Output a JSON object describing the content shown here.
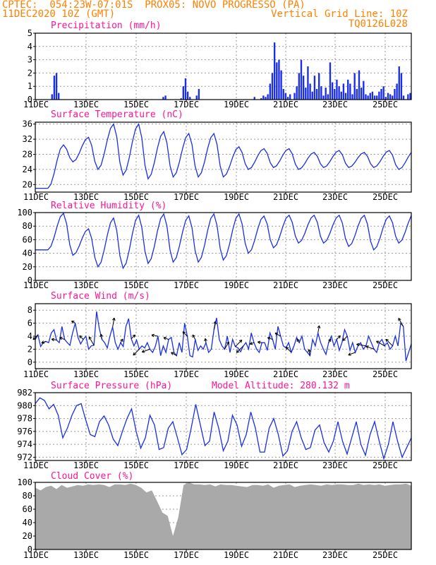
{
  "header": {
    "line1_left": "CPTEC:  054:23W-07:01S  PROX05: NOVO PROGRESSO (PA)",
    "line2_left": "11DEC2020 10Z (GMT)",
    "line2_right": "Vertical Grid Line: 10Z",
    "line3_right": "TQ0126L028",
    "color_title": "#ff8000"
  },
  "colors": {
    "series": "#1a2ee6",
    "title": "#ff1493",
    "grid": "#9a9a9a",
    "cloud": "#a9a9a9",
    "arrow": "#000000"
  },
  "x_tick_labels": [
    "11DEC",
    "13DEC",
    "15DEC",
    "17DEC",
    "19DEC",
    "21DEC",
    "23DEC",
    "25DEC"
  ],
  "chart_data": [
    {
      "type": "bar",
      "title": "Precipitation (mm/h)",
      "ylim": [
        0,
        5
      ],
      "yticks": [
        "0",
        "1",
        "2",
        "3",
        "4",
        "5"
      ],
      "x_start": "11DEC 10Z",
      "x_step_hours": 3,
      "values": [
        0,
        0,
        0,
        0,
        0,
        0,
        0,
        0.4,
        1.8,
        2.0,
        0.5,
        0,
        0,
        0,
        0,
        0,
        0,
        0,
        0,
        0,
        0,
        0,
        0,
        0,
        0,
        0,
        0,
        0,
        0,
        0,
        0,
        0,
        0,
        0,
        0,
        0,
        0,
        0,
        0,
        0,
        0,
        0,
        0,
        0,
        0,
        0,
        0,
        0,
        0,
        0,
        0,
        0,
        0,
        0,
        0,
        0,
        0,
        0.2,
        0.3,
        0,
        0,
        0,
        0,
        0,
        0,
        0.1,
        1.0,
        1.6,
        0.6,
        0.2,
        0,
        0,
        0.3,
        0.8,
        0,
        0,
        0,
        0,
        0,
        0,
        0,
        0,
        0,
        0,
        0,
        0,
        0,
        0,
        0,
        0,
        0,
        0,
        0,
        0,
        0,
        0,
        0,
        0,
        0.2,
        0,
        0,
        0.1,
        0.3,
        0.2,
        0.4,
        1.2,
        2.0,
        4.3,
        2.8,
        3.0,
        2.2,
        0.8,
        0.5,
        0.2,
        0.4,
        0,
        0.5,
        1.0,
        2.0,
        3.0,
        1.8,
        0.9,
        2.5,
        1.2,
        0.6,
        1.8,
        0.8,
        2.0,
        1.0,
        0.3,
        0.9,
        0.4,
        2.8,
        1.3,
        0.8,
        1.5,
        1.0,
        0.6,
        1.2,
        0.5,
        1.5,
        1.2,
        0.4,
        2.0,
        0.8,
        2.2,
        0.9,
        1.4,
        0.4,
        0.3,
        0.5,
        0.6,
        0.3,
        0.3,
        0.6,
        0.8,
        1.0,
        0.2,
        0.5,
        0.4,
        0.3,
        0.8,
        1.2,
        2.5,
        2.0,
        0.3,
        0,
        0.4,
        0.5
      ]
    },
    {
      "type": "line",
      "title": "Surface Temperature (nC)",
      "ylim": [
        18,
        36.5
      ],
      "yticks": [
        "20",
        "24",
        "28",
        "32",
        "36"
      ],
      "peaks": [
        30.5,
        32.5,
        36,
        36,
        34,
        33.5,
        33.5,
        30,
        29.5,
        29.5,
        28.5,
        29,
        28.5,
        29,
        29,
        28.5,
        29
      ],
      "troughs": [
        19,
        26,
        24,
        22.5,
        21.5,
        22,
        22,
        22,
        24,
        24.5,
        24,
        24.5,
        24.5,
        24.5,
        24,
        24,
        23.5,
        24
      ]
    },
    {
      "type": "line",
      "title": "Relative Humidity (%)",
      "ylim": [
        0,
        100
      ],
      "yticks": [
        "0",
        "20",
        "40",
        "60",
        "80",
        "100"
      ],
      "peaks": [
        99,
        76,
        92,
        96,
        98,
        95,
        98,
        98,
        95,
        96,
        96,
        96,
        96,
        95,
        100,
        96,
        90,
        65
      ],
      "troughs": [
        45,
        37,
        20,
        18,
        25,
        27,
        27,
        30,
        40,
        48,
        55,
        55,
        50,
        45,
        55,
        50,
        58,
        60
      ]
    },
    {
      "type": "line",
      "title": "Surface Wind (m/s)",
      "ylim": [
        -1,
        9
      ],
      "yticks": [
        "0",
        "2",
        "4",
        "6",
        "8"
      ],
      "values": [
        3.5,
        4.2,
        2.4,
        3.0,
        3.2,
        3.0,
        4.5,
        5.0,
        3.4,
        3.0,
        5.5,
        3.5,
        3.0,
        2.6,
        4.5,
        6.0,
        3.8,
        2.8,
        3.5,
        4.0,
        2.0,
        2.5,
        2.6,
        7.8,
        5.2,
        3.5,
        3.0,
        2.2,
        4.0,
        5.4,
        3.0,
        2.0,
        3.0,
        2.4,
        5.5,
        6.7,
        3.6,
        2.5,
        3.4,
        2.0,
        2.5,
        2.2,
        3.0,
        2.0,
        1.5,
        2.4,
        4.0,
        1.0,
        2.5,
        1.5,
        3.5,
        3.8,
        1.5,
        1.0,
        3.0,
        1.5,
        6.0,
        4.0,
        1.0,
        0.8,
        3.5,
        1.8,
        2.5,
        2.0,
        3.0,
        1.5,
        2.0,
        5.0,
        6.8,
        3.5,
        2.5,
        2.0,
        4.0,
        1.5,
        3.5,
        2.4,
        2.2,
        1.6,
        2.5,
        3.0,
        2.0,
        4.5,
        3.0,
        2.0,
        1.5,
        3.0,
        3.0,
        1.8,
        4.5,
        3.5,
        2.0,
        5.5,
        4.0,
        2.5,
        2.2,
        3.0,
        1.5,
        2.5,
        3.8,
        3.0,
        4.0,
        2.0,
        1.5,
        1.0,
        3.5,
        2.5,
        4.5,
        3.0,
        2.0,
        1.2,
        3.0,
        4.0,
        2.5,
        3.5,
        1.8,
        3.0,
        5.0,
        4.0,
        1.8,
        3.0,
        1.5,
        2.5,
        3.0,
        2.0,
        2.5,
        4.0,
        3.0,
        2.0,
        1.5,
        3.0,
        3.5,
        2.5,
        3.0,
        2.0,
        2.5,
        4.0,
        2.5,
        6.0,
        5.5,
        0.2,
        1.5,
        2.8
      ]
    },
    {
      "type": "line",
      "title": "Surface Pressure (hPa)",
      "annotation": "Model Altitude: 280.132 m",
      "ylim": [
        971.5,
        982
      ],
      "yticks": [
        "972",
        "974",
        "976",
        "978",
        "980",
        "982"
      ],
      "values": [
        980.3,
        981.2,
        980.8,
        979.5,
        980.2,
        978.5,
        975.0,
        976.5,
        978.5,
        980.0,
        980.3,
        977.8,
        975.5,
        975.2,
        977.5,
        978.4,
        977.0,
        974.8,
        973.8,
        976.0,
        978.0,
        979.5,
        976.0,
        973.4,
        975.0,
        978.5,
        977.0,
        973.2,
        973.5,
        976.5,
        977.5,
        975.0,
        972.4,
        973.2,
        976.5,
        980.2,
        977.0,
        973.8,
        974.5,
        979.0,
        976.5,
        973.0,
        974.5,
        978.5,
        977.0,
        973.7,
        975.5,
        979.0,
        976.5,
        972.8,
        972.8,
        976.5,
        978.0,
        975.5,
        972.2,
        973.0,
        976.0,
        977.5,
        975.0,
        973.2,
        973.5,
        976.2,
        977.0,
        974.2,
        972.8,
        974.5,
        977.5,
        974.5,
        972.5,
        975.0,
        977.5,
        974.0,
        972.3,
        975.5,
        977.5,
        974.5,
        971.8,
        974.0,
        977.5,
        974.5,
        972.0,
        973.5,
        975.0
      ]
    },
    {
      "type": "area",
      "title": "Cloud Cover (%)",
      "ylim": [
        0,
        100
      ],
      "yticks": [
        "0",
        "20",
        "40",
        "60",
        "80",
        "100"
      ],
      "values": [
        92,
        88,
        93,
        95,
        90,
        96,
        92,
        94,
        96,
        95,
        97,
        96,
        97,
        96,
        93,
        97,
        97,
        96,
        98,
        96,
        92,
        85,
        88,
        72,
        55,
        50,
        20,
        48,
        96,
        100,
        97,
        97,
        96,
        97,
        94,
        97,
        96,
        96,
        95,
        94,
        93,
        96,
        96,
        95,
        97,
        92,
        95,
        96,
        97,
        93,
        95,
        96,
        97,
        96,
        95,
        97,
        96,
        97,
        97,
        96,
        96,
        98,
        96,
        97,
        96,
        97,
        95,
        96,
        97,
        97,
        98,
        95
      ]
    }
  ]
}
